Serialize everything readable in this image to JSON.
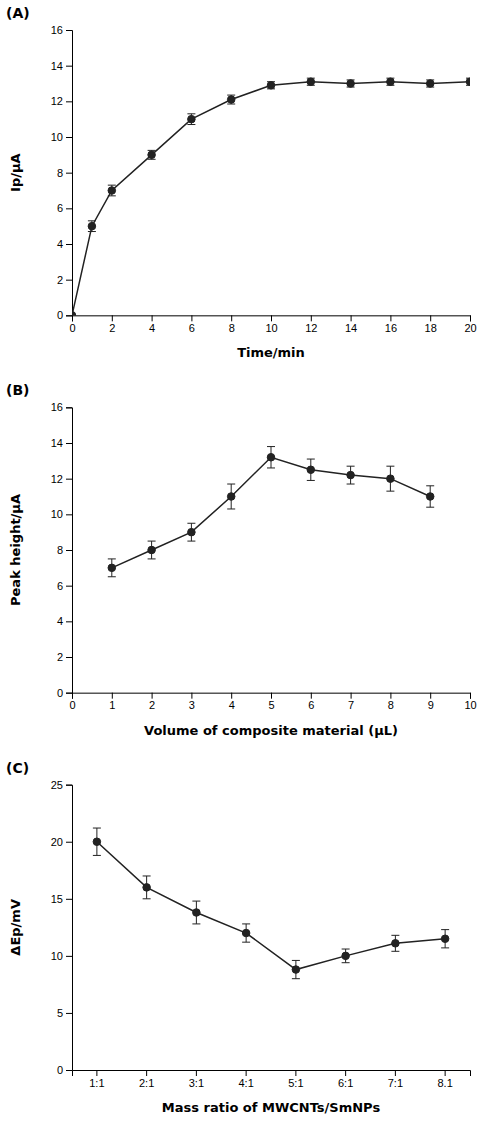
{
  "chart_data": [
    {
      "type": "line",
      "title": "(A)",
      "x_label": "Time/min",
      "y_label": "Ip/μA",
      "x": [
        0,
        1,
        2,
        4,
        6,
        8,
        10,
        12,
        14,
        16,
        18,
        20
      ],
      "series": [
        {
          "values": [
            0.0,
            5.0,
            7.0,
            9.0,
            11.0,
            12.1,
            12.9,
            13.1,
            13.0,
            13.1,
            13.0,
            13.1
          ],
          "errors": [
            0.0,
            0.3,
            0.3,
            0.25,
            0.3,
            0.25,
            0.2,
            0.2,
            0.2,
            0.2,
            0.2,
            0.2
          ],
          "color": "#222222",
          "marker": "circle"
        }
      ],
      "xlim": [
        0,
        20
      ],
      "ylim": [
        0,
        16
      ],
      "xticks": [
        0,
        2,
        4,
        6,
        8,
        10,
        12,
        14,
        16,
        18,
        20
      ],
      "yticks": [
        0,
        2,
        4,
        6,
        8,
        10,
        12,
        14,
        16
      ]
    },
    {
      "type": "line",
      "title": "(B)",
      "x_label": "Volume of composite material (μL)",
      "y_label": "Peak height/μA",
      "x": [
        1,
        2,
        3,
        4,
        5,
        6,
        7,
        8,
        9
      ],
      "series": [
        {
          "values": [
            7.0,
            8.0,
            9.0,
            11.0,
            13.2,
            12.5,
            12.2,
            12.0,
            11.0
          ],
          "errors": [
            0.5,
            0.5,
            0.5,
            0.7,
            0.6,
            0.6,
            0.5,
            0.7,
            0.6
          ],
          "color": "#222222",
          "marker": "circle"
        }
      ],
      "xlim": [
        0,
        10
      ],
      "ylim": [
        0,
        16
      ],
      "xticks": [
        0,
        1,
        2,
        3,
        4,
        5,
        6,
        7,
        8,
        9,
        10
      ],
      "yticks": [
        0,
        2,
        4,
        6,
        8,
        10,
        12,
        14,
        16
      ]
    },
    {
      "type": "line",
      "title": "(C)",
      "x_label": "Mass ratio of MWCNTs/SmNPs",
      "y_label": "ΔEp/mV",
      "categories": [
        "1:1",
        "2:1",
        "3:1",
        "4:1",
        "5:1",
        "6:1",
        "7:1",
        "8.1"
      ],
      "series": [
        {
          "values": [
            20.0,
            16.0,
            13.8,
            12.0,
            8.8,
            10.0,
            11.1,
            11.5
          ],
          "errors": [
            1.2,
            1.0,
            1.0,
            0.8,
            0.8,
            0.6,
            0.7,
            0.8
          ],
          "color": "#222222",
          "marker": "circle"
        }
      ],
      "ylim": [
        0,
        25
      ],
      "yticks": [
        0,
        5,
        10,
        15,
        20,
        25
      ]
    }
  ]
}
